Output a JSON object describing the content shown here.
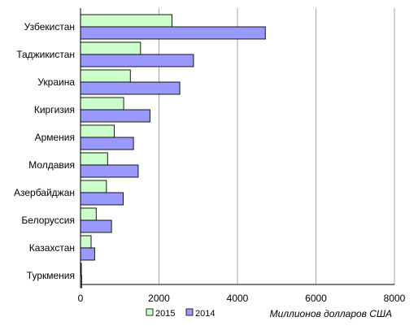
{
  "chart_data": {
    "type": "bar",
    "orientation": "horizontal",
    "categories": [
      "Узбекистан",
      "Таджикистан",
      "Украина",
      "Киргизия",
      "Армения",
      "Молдавия",
      "Азербайджан",
      "Белоруссия",
      "Казахстан",
      "Туркмения"
    ],
    "series": [
      {
        "name": "2015",
        "color": "#ccffcc",
        "values": [
          2330,
          1530,
          1270,
          1100,
          860,
          690,
          660,
          400,
          270,
          20
        ]
      },
      {
        "name": "2014",
        "color": "#9999ff",
        "values": [
          4710,
          2880,
          2530,
          1770,
          1350,
          1470,
          1090,
          790,
          360,
          30
        ]
      }
    ],
    "xlim": [
      0,
      8000
    ],
    "xticks": [
      "0",
      "2000",
      "4000",
      "6000",
      "8000"
    ],
    "unit_label": "Миллионов долларов США",
    "grid": true,
    "legend_position": "bottom"
  }
}
